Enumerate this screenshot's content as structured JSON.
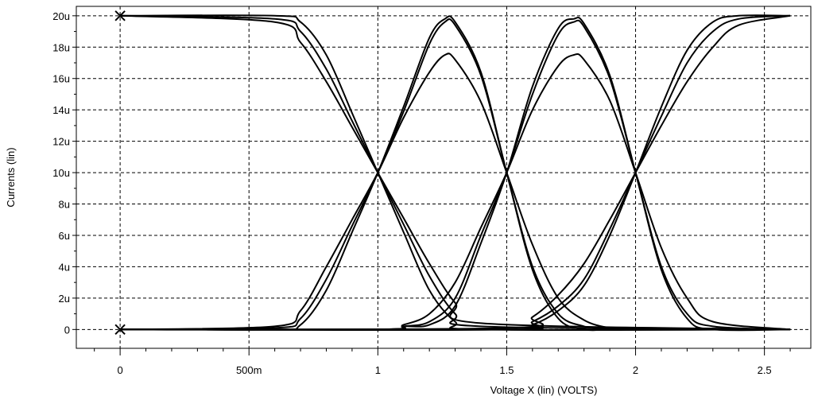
{
  "chart_data": {
    "type": "line",
    "title": "",
    "xlabel": "Voltage X (lin) (VOLTS)",
    "ylabel": "Currents (lin)",
    "xlim": [
      -0.17,
      2.68
    ],
    "ylim": [
      -1.2,
      20.6
    ],
    "grid": true,
    "x_ticks": [
      {
        "value": 0,
        "label": "0"
      },
      {
        "value": 0.5,
        "label": "500m"
      },
      {
        "value": 1,
        "label": "1"
      },
      {
        "value": 1.5,
        "label": "1.5"
      },
      {
        "value": 2,
        "label": "2"
      },
      {
        "value": 2.5,
        "label": "2.5"
      }
    ],
    "y_ticks": [
      {
        "value": 0,
        "label": "0"
      },
      {
        "value": 2,
        "label": "2u"
      },
      {
        "value": 4,
        "label": "4u"
      },
      {
        "value": 6,
        "label": "6u"
      },
      {
        "value": 8,
        "label": "8u"
      },
      {
        "value": 10,
        "label": "10u"
      },
      {
        "value": 12,
        "label": "12u"
      },
      {
        "value": 14,
        "label": "14u"
      },
      {
        "value": 16,
        "label": "16u"
      },
      {
        "value": 18,
        "label": "18u"
      },
      {
        "value": 20,
        "label": "20u"
      }
    ],
    "markers": [
      {
        "x": 0,
        "y": 20
      },
      {
        "x": 0,
        "y": 0
      }
    ],
    "series": [
      {
        "x": [
          0,
          0.6,
          0.7,
          0.8,
          0.9,
          1.0,
          1.1,
          1.2,
          1.3,
          1.4,
          2.6
        ],
        "y": [
          20,
          20,
          19.6,
          17.5,
          13.8,
          10,
          6.2,
          2.5,
          0.5,
          0,
          0
        ]
      },
      {
        "x": [
          0,
          0.6,
          0.7,
          0.8,
          0.9,
          1.0,
          1.1,
          1.2,
          1.3,
          1.4,
          2.6
        ],
        "y": [
          20,
          19.8,
          19.0,
          16.6,
          13.3,
          10,
          6.7,
          3.4,
          1.0,
          0.2,
          0
        ]
      },
      {
        "x": [
          0,
          0.6,
          0.7,
          0.8,
          0.9,
          1.0,
          1.1,
          1.2,
          1.3,
          1.4,
          2.6
        ],
        "y": [
          20,
          19.6,
          18.3,
          15.8,
          12.9,
          10,
          7.1,
          4.2,
          1.7,
          0.4,
          0
        ]
      },
      {
        "x": [
          0,
          0.6,
          0.7,
          0.8,
          0.9,
          1.0,
          1.1,
          1.2,
          1.26,
          1.3,
          1.4,
          1.5,
          1.6,
          1.7,
          1.8,
          1.9,
          2.0,
          2.6
        ],
        "y": [
          0,
          0,
          0.3,
          2.5,
          6.2,
          10,
          14.2,
          18.6,
          19.8,
          19.6,
          16.4,
          10,
          3.8,
          0.7,
          0,
          0,
          0,
          0
        ]
      },
      {
        "x": [
          0,
          0.6,
          0.7,
          0.8,
          0.9,
          1.0,
          1.1,
          1.2,
          1.26,
          1.3,
          1.4,
          1.5,
          1.6,
          1.7,
          1.8,
          1.9,
          2.0,
          2.6
        ],
        "y": [
          0,
          0.1,
          0.7,
          3.2,
          6.6,
          10,
          13.9,
          18.2,
          19.6,
          19.4,
          16.2,
          10,
          4.0,
          1.0,
          0.2,
          0,
          0,
          0
        ]
      },
      {
        "x": [
          0,
          0.6,
          0.7,
          0.8,
          0.9,
          1.0,
          1.1,
          1.2,
          1.26,
          1.3,
          1.4,
          1.5,
          1.6,
          1.7,
          1.8,
          1.9,
          2.0,
          2.6
        ],
        "y": [
          0,
          0.2,
          1.2,
          4.0,
          7.0,
          10,
          13.5,
          16.4,
          17.5,
          17.2,
          14.5,
          10,
          5.4,
          2.0,
          0.6,
          0.1,
          0,
          0
        ]
      },
      {
        "x": [
          0,
          1.0,
          1.1,
          1.2,
          1.3,
          1.4,
          1.5,
          1.6,
          1.7,
          1.76,
          1.8,
          1.9,
          2.0,
          2.1,
          2.2,
          2.3,
          2.6
        ],
        "y": [
          0,
          0,
          0.2,
          0.3,
          1.5,
          5.5,
          10,
          15.5,
          19.2,
          19.8,
          19.5,
          16.2,
          10,
          3.8,
          0.7,
          0,
          0
        ]
      },
      {
        "x": [
          0,
          1.0,
          1.1,
          1.2,
          1.3,
          1.4,
          1.5,
          1.6,
          1.7,
          1.76,
          1.8,
          1.9,
          2.0,
          2.1,
          2.2,
          2.3,
          2.6
        ],
        "y": [
          0,
          0,
          0.2,
          0.5,
          2.0,
          6.0,
          10,
          15.0,
          18.8,
          19.6,
          19.3,
          16.0,
          10,
          4.0,
          1.0,
          0.2,
          0
        ]
      },
      {
        "x": [
          0,
          1.0,
          1.1,
          1.2,
          1.3,
          1.4,
          1.5,
          1.6,
          1.7,
          1.76,
          1.8,
          1.9,
          2.0,
          2.1,
          2.2,
          2.3,
          2.6
        ],
        "y": [
          0,
          0,
          0.3,
          1.0,
          3.0,
          6.5,
          10,
          14.0,
          16.8,
          17.5,
          17.2,
          14.6,
          10,
          5.2,
          2.0,
          0.5,
          0
        ]
      },
      {
        "x": [
          0,
          1.5,
          1.6,
          1.7,
          1.8,
          1.9,
          2.0,
          2.1,
          2.2,
          2.3,
          2.4,
          2.6
        ],
        "y": [
          0,
          0,
          0.3,
          1.2,
          2.8,
          6.0,
          10,
          14.2,
          17.8,
          19.6,
          20,
          20
        ]
      },
      {
        "x": [
          0,
          1.5,
          1.6,
          1.7,
          1.8,
          1.9,
          2.0,
          2.1,
          2.2,
          2.3,
          2.4,
          2.6
        ],
        "y": [
          0,
          0,
          0.5,
          1.5,
          3.2,
          6.4,
          10,
          13.6,
          17.0,
          19.0,
          19.8,
          20
        ]
      },
      {
        "x": [
          0,
          1.5,
          1.6,
          1.7,
          1.8,
          1.9,
          2.0,
          2.1,
          2.2,
          2.3,
          2.4,
          2.6
        ],
        "y": [
          0,
          0.1,
          0.8,
          2.2,
          4.2,
          7.0,
          10,
          13.0,
          15.8,
          18.0,
          19.4,
          20
        ]
      }
    ]
  }
}
